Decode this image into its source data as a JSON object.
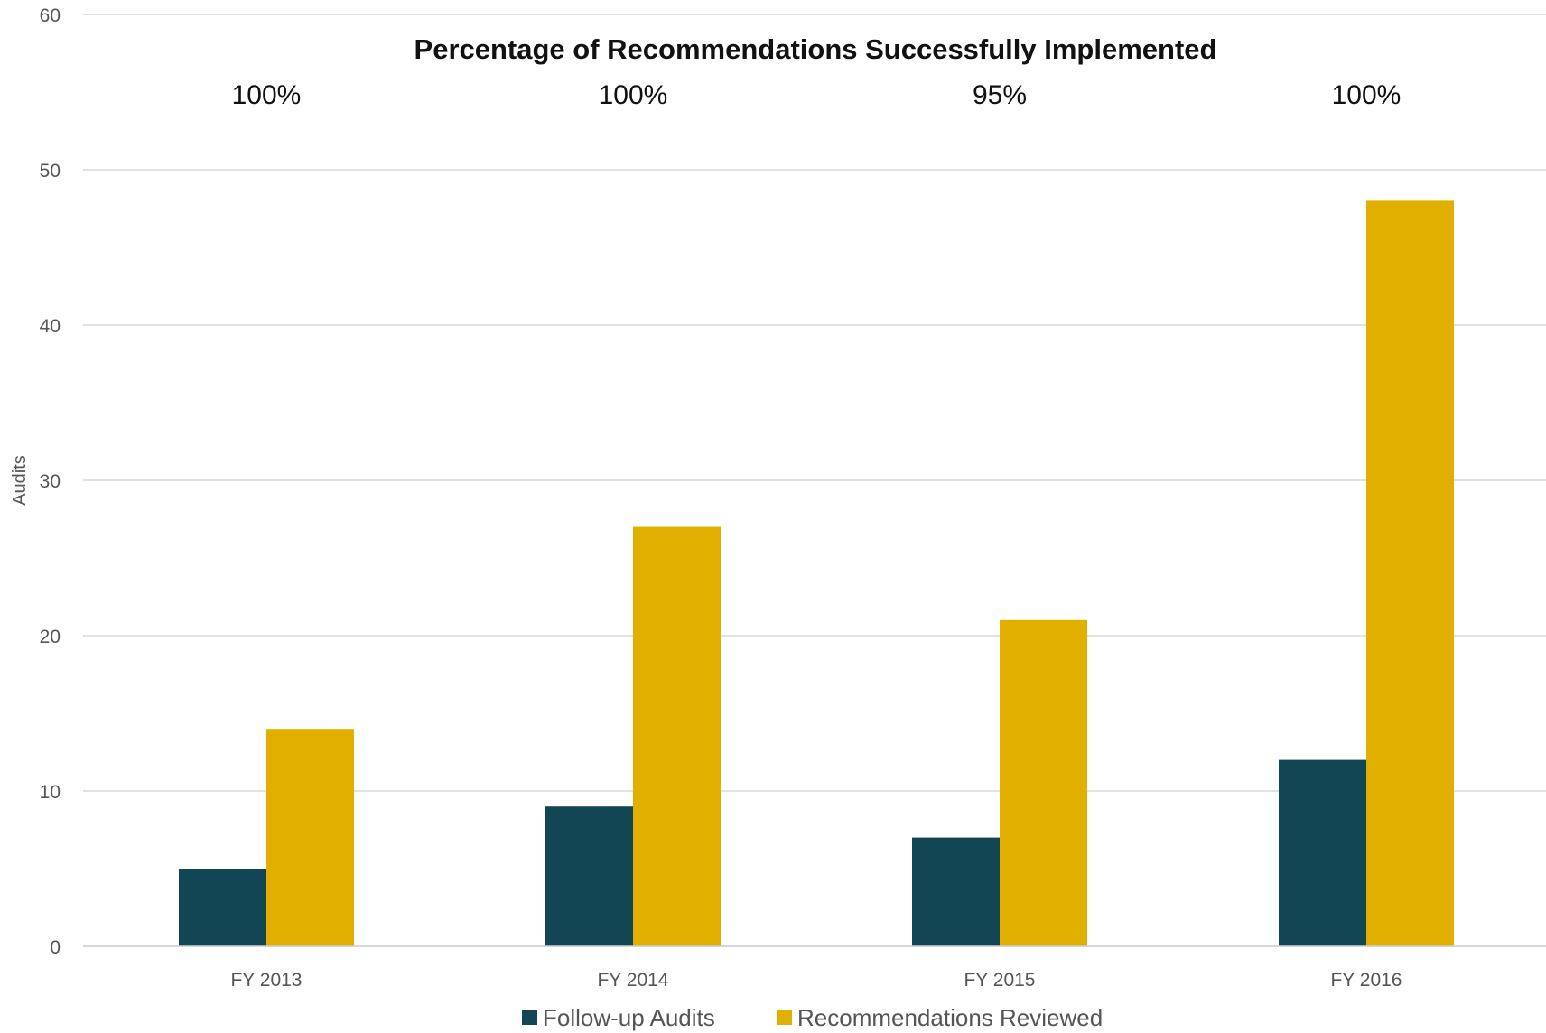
{
  "chart_data": {
    "type": "bar",
    "title": "Percentage of Recommendations Successfully Implemented",
    "ylabel": "Audits",
    "xlabel": "",
    "ylim": [
      0,
      60
    ],
    "yticks": [
      0,
      10,
      20,
      30,
      40,
      50,
      60
    ],
    "grid": true,
    "legend_position": "bottom",
    "categories": [
      "FY 2013",
      "FY 2014",
      "FY 2015",
      "FY 2016"
    ],
    "annotations": [
      "100%",
      "100%",
      "95%",
      "100%"
    ],
    "series": [
      {
        "name": "Follow-up Audits",
        "color": "#124654",
        "values": [
          5,
          9,
          7,
          12
        ]
      },
      {
        "name": "Recommendations Reviewed",
        "color": "#E1AF00",
        "values": [
          14,
          27,
          21,
          48
        ]
      }
    ]
  }
}
